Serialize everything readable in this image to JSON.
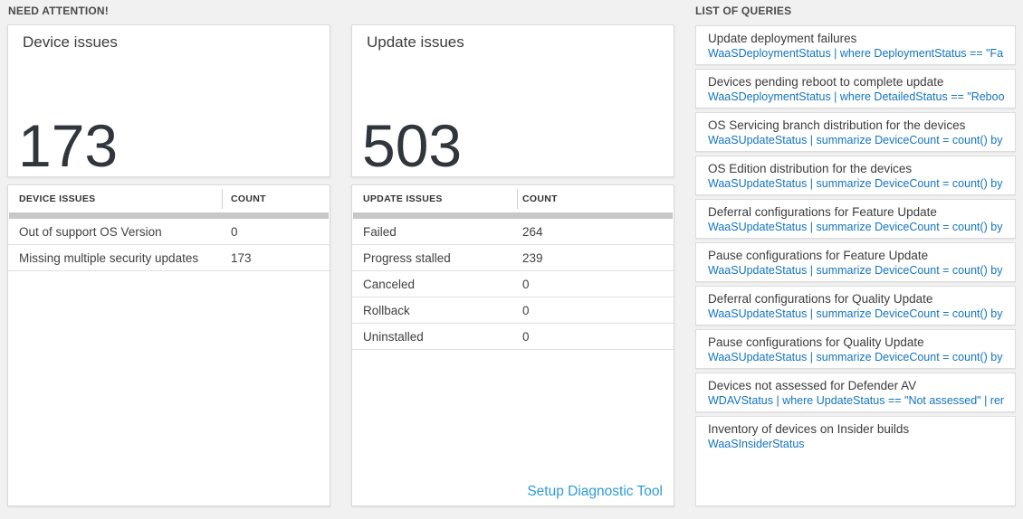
{
  "sections": {
    "need_attention": "NEED ATTENTION!",
    "list_of_queries": "LIST OF QUERIES"
  },
  "device_issues": {
    "card_title": "Device issues",
    "total": "173",
    "table": {
      "col_issue": "DEVICE ISSUES",
      "col_count": "COUNT",
      "rows": [
        {
          "label": "Out of support OS Version",
          "count": "0"
        },
        {
          "label": "Missing multiple security updates",
          "count": "173"
        }
      ]
    }
  },
  "update_issues": {
    "card_title": "Update issues",
    "total": "503",
    "table": {
      "col_issue": "UPDATE ISSUES",
      "col_count": "COUNT",
      "rows": [
        {
          "label": "Failed",
          "count": "264"
        },
        {
          "label": "Progress stalled",
          "count": "239"
        },
        {
          "label": "Canceled",
          "count": "0"
        },
        {
          "label": "Rollback",
          "count": "0"
        },
        {
          "label": "Uninstalled",
          "count": "0"
        }
      ]
    },
    "footer_link": "Setup Diagnostic Tool"
  },
  "queries": [
    {
      "title": "Update deployment failures",
      "query": "WaaSDeploymentStatus | where DeploymentStatus == \"Failed\" |..."
    },
    {
      "title": "Devices pending reboot to complete update",
      "query": "WaaSDeploymentStatus | where DetailedStatus == \"Reboot pend..."
    },
    {
      "title": "OS Servicing branch distribution for the devices",
      "query": "WaaSUpdateStatus | summarize DeviceCount = count() by OSSer..."
    },
    {
      "title": "OS Edition distribution for the devices",
      "query": "WaaSUpdateStatus | summarize DeviceCount = count() by OSEdit..."
    },
    {
      "title": "Deferral configurations for Feature Update",
      "query": "WaaSUpdateStatus | summarize DeviceCount = count() by Featur..."
    },
    {
      "title": "Pause configurations for Feature Update",
      "query": "WaaSUpdateStatus | summarize DeviceCount = count() by Featur..."
    },
    {
      "title": "Deferral configurations for Quality Update",
      "query": "WaaSUpdateStatus | summarize DeviceCount = count() by Qualit..."
    },
    {
      "title": "Pause configurations for Quality Update",
      "query": "WaaSUpdateStatus | summarize DeviceCount = count() by Qualit..."
    },
    {
      "title": "Devices not assessed for Defender AV",
      "query": "WDAVStatus | where UpdateStatus == \"Not assessed\" | render ta..."
    },
    {
      "title": "Inventory of devices on Insider builds",
      "query": "WaaSInsiderStatus"
    }
  ],
  "colors": {
    "page_bg": "#f1f1f1",
    "query_blue": "#1374c1",
    "link_blue": "#2e9bd8",
    "big_number": "#30363c",
    "scrollbar_gray": "#c7c7c7"
  }
}
